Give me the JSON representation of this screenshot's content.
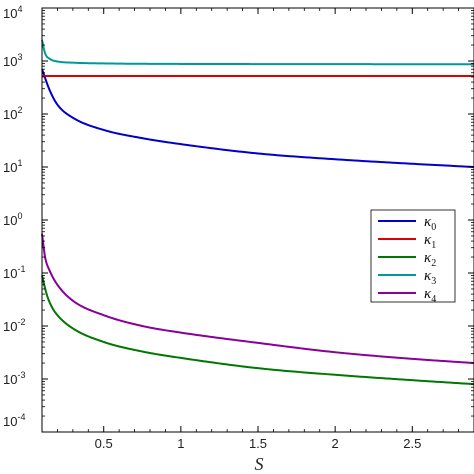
{
  "chart_data": {
    "type": "line",
    "title": "",
    "xlabel": "S",
    "ylabel": "",
    "xlim": [
      0.1,
      2.9
    ],
    "yscale": "log",
    "ylim_exponent": [
      -4,
      4
    ],
    "y_tick_labels": [
      {
        "base": "10",
        "exp": "4"
      },
      {
        "base": "10",
        "exp": "3"
      },
      {
        "base": "10",
        "exp": "2"
      },
      {
        "base": "10",
        "exp": "1"
      },
      {
        "base": "10",
        "exp": "0"
      },
      {
        "base": "10",
        "exp": "-1"
      },
      {
        "base": "10",
        "exp": "-2"
      },
      {
        "base": "10",
        "exp": "-3"
      },
      {
        "base": "10",
        "exp": "-4"
      }
    ],
    "x_ticks": [
      0.5,
      1,
      1.5,
      2,
      2.5
    ],
    "x_tick_labels": [
      "0.5",
      "1",
      "1.5",
      "2",
      "2.5"
    ],
    "grid": false,
    "legend_position": "right-center",
    "series": [
      {
        "name": "κ0",
        "symbol": "κ",
        "sub": "0",
        "color": "#0000cc",
        "x": [
          0.1,
          0.15,
          0.2,
          0.3,
          0.5,
          0.75,
          1.0,
          1.5,
          2.0,
          2.5,
          2.9
        ],
        "y": [
          700,
          280,
          150,
          85,
          50,
          35,
          27,
          18,
          14,
          11.5,
          10
        ]
      },
      {
        "name": "κ1",
        "symbol": "κ",
        "sub": "1",
        "color": "#dd0000",
        "x": [
          0.1,
          0.5,
          1.0,
          1.5,
          2.0,
          2.5,
          2.9
        ],
        "y": [
          520,
          520,
          520,
          520,
          520,
          520,
          520
        ]
      },
      {
        "name": "κ2",
        "symbol": "κ",
        "sub": "2",
        "color": "#007700",
        "x": [
          0.1,
          0.13,
          0.16,
          0.2,
          0.3,
          0.5,
          0.75,
          1.0,
          1.5,
          2.0,
          2.5,
          2.9
        ],
        "y": [
          0.09,
          0.04,
          0.024,
          0.016,
          0.009,
          0.005,
          0.0033,
          0.0025,
          0.0016,
          0.0012,
          0.00095,
          0.0008
        ]
      },
      {
        "name": "κ3",
        "symbol": "κ",
        "sub": "3",
        "color": "#009999",
        "x": [
          0.1,
          0.12,
          0.15,
          0.2,
          0.3,
          0.5,
          1.0,
          1.5,
          2.0,
          2.5,
          2.9
        ],
        "y": [
          2500,
          1400,
          1100,
          980,
          930,
          900,
          880,
          875,
          872,
          870,
          870
        ]
      },
      {
        "name": "κ4",
        "symbol": "κ",
        "sub": "4",
        "color": "#880099",
        "x": [
          0.1,
          0.12,
          0.15,
          0.2,
          0.3,
          0.5,
          0.75,
          1.0,
          1.5,
          2.0,
          2.5,
          2.9
        ],
        "y": [
          0.55,
          0.2,
          0.11,
          0.06,
          0.03,
          0.016,
          0.01,
          0.0075,
          0.0048,
          0.0032,
          0.0024,
          0.002
        ]
      }
    ]
  }
}
